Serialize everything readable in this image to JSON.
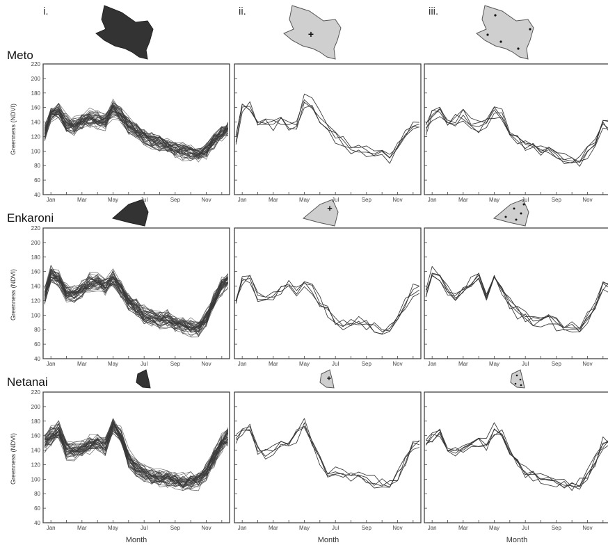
{
  "columns": [
    "i.",
    "ii.",
    "iii."
  ],
  "rows": [
    "Meto",
    "Enkaroni",
    "Netanai"
  ],
  "axes": {
    "ylabel": "Greenness  (NDVI)",
    "xlabel": "Month",
    "y_ticks": [
      40,
      60,
      80,
      100,
      120,
      140,
      160,
      180,
      200,
      220
    ],
    "ylim": [
      40,
      220
    ],
    "x_tick_labels": [
      "Jan",
      "Mar",
      "May",
      "Jul",
      "Sep",
      "Nov"
    ]
  },
  "colors": {
    "dense_series": "#3a3a3a",
    "sparse_series": "#333333",
    "shape_dark": "#333333",
    "shape_light": "#cfcfcf",
    "frame": "#333333"
  },
  "chart_data": {
    "type": "line",
    "x_unit": "month",
    "xlim": [
      0.5,
      12.5
    ],
    "ylim": [
      40,
      220
    ],
    "series_counts": {
      "i": 40,
      "ii": 4,
      "iii": 5
    },
    "profiles": {
      "Meto": {
        "x": [
          0.6,
          1.0,
          1.5,
          2.0,
          2.5,
          3.0,
          3.5,
          4.0,
          4.5,
          5.0,
          5.5,
          6.0,
          6.5,
          7.0,
          7.5,
          8.0,
          8.5,
          9.0,
          9.5,
          10.0,
          10.5,
          11.0,
          11.5,
          12.0,
          12.4
        ],
        "i": [
          125,
          150,
          155,
          138,
          135,
          140,
          145,
          143,
          140,
          158,
          150,
          135,
          128,
          120,
          112,
          110,
          105,
          102,
          100,
          97,
          95,
          100,
          115,
          125,
          130
        ],
        "ii": [
          118,
          160,
          165,
          140,
          140,
          138,
          142,
          132,
          138,
          170,
          165,
          148,
          135,
          120,
          115,
          105,
          103,
          100,
          99,
          95,
          92,
          108,
          125,
          140,
          135
        ],
        "iii": [
          130,
          150,
          158,
          140,
          145,
          150,
          140,
          135,
          140,
          155,
          150,
          130,
          120,
          110,
          105,
          102,
          100,
          95,
          92,
          90,
          88,
          100,
          115,
          135,
          135
        ]
      },
      "Enkaroni": {
        "x": [
          0.6,
          1.0,
          1.5,
          2.0,
          2.5,
          3.0,
          3.5,
          4.0,
          4.5,
          5.0,
          5.5,
          6.0,
          6.5,
          7.0,
          7.5,
          8.0,
          8.5,
          9.0,
          9.5,
          10.0,
          10.5,
          11.0,
          11.5,
          12.0,
          12.4
        ],
        "i": [
          125,
          155,
          150,
          130,
          128,
          135,
          145,
          145,
          140,
          150,
          135,
          118,
          110,
          100,
          95,
          92,
          95,
          88,
          85,
          83,
          82,
          95,
          118,
          140,
          148
        ],
        "ii": [
          120,
          148,
          150,
          128,
          120,
          128,
          135,
          140,
          132,
          148,
          138,
          118,
          105,
          92,
          88,
          88,
          95,
          85,
          82,
          80,
          80,
          100,
          118,
          135,
          132
        ],
        "iii": [
          130,
          158,
          152,
          135,
          125,
          130,
          145,
          150,
          130,
          150,
          135,
          115,
          105,
          98,
          92,
          90,
          95,
          88,
          85,
          82,
          82,
          98,
          115,
          140,
          140
        ]
      },
      "Netanai": {
        "x": [
          0.6,
          1.0,
          1.5,
          2.0,
          2.5,
          3.0,
          3.5,
          4.0,
          4.5,
          5.0,
          5.5,
          6.0,
          6.5,
          7.0,
          7.5,
          8.0,
          8.5,
          9.0,
          9.5,
          10.0,
          10.5,
          11.0,
          11.5,
          12.0,
          12.4
        ],
        "i": [
          150,
          160,
          168,
          140,
          138,
          142,
          148,
          150,
          145,
          175,
          160,
          130,
          115,
          108,
          105,
          102,
          100,
          98,
          96,
          97,
          98,
          110,
          130,
          150,
          158
        ],
        "ii": [
          155,
          165,
          170,
          140,
          135,
          140,
          150,
          148,
          160,
          180,
          150,
          125,
          105,
          110,
          110,
          105,
          102,
          100,
          98,
          95,
          95,
          105,
          125,
          150,
          152
        ],
        "iii": [
          150,
          160,
          165,
          145,
          140,
          145,
          150,
          150,
          148,
          170,
          165,
          140,
          120,
          110,
          105,
          100,
          98,
          95,
          93,
          92,
          95,
          105,
          125,
          150,
          150
        ]
      }
    }
  }
}
